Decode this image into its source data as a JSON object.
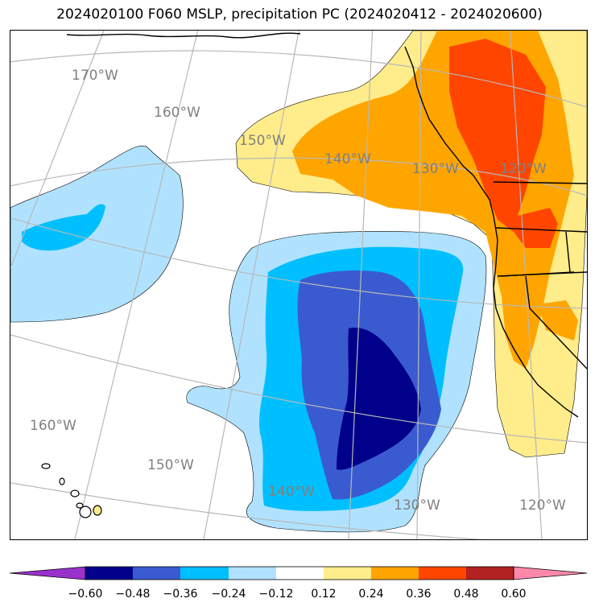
{
  "title": "2024020100 F060 MSLP, precipitation PC (2024020412 - 2024020600)",
  "grid_labels": {
    "top_row": [
      "170°W",
      "160°W",
      "150°W",
      "140°W",
      "130°W",
      "120°W"
    ],
    "bottom_row": [
      "160°W",
      "150°W",
      "140°W",
      "130°W",
      "120°W"
    ]
  },
  "colorbar": {
    "ticks": [
      "−0.60",
      "−0.48",
      "−0.36",
      "−0.24",
      "−0.12",
      "0.12",
      "0.24",
      "0.36",
      "0.48",
      "0.60"
    ],
    "colors": [
      "#9932cc",
      "#00008b",
      "#3a5bd0",
      "#00bfff",
      "#b0e2ff",
      "#ffffff",
      "#ffec8b",
      "#ffa500",
      "#ff4500",
      "#b22222",
      "#ff88aa"
    ]
  },
  "colors": {
    "land_outline": "#000000",
    "graticule": "#b8b8b8",
    "light_yellow": "#ffec8b",
    "orange": "#ffa500",
    "red_orange": "#ff4500",
    "light_blue": "#b0e2ff",
    "sky_blue": "#00bfff",
    "royal_blue": "#3a5bd0",
    "dark_blue": "#00008b"
  }
}
